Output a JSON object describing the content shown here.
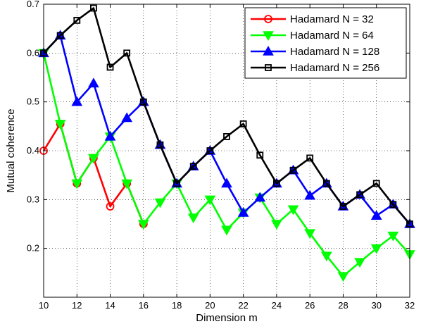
{
  "chart_data": {
    "type": "line",
    "title": "",
    "xlabel": "Dimension m",
    "ylabel": "Mutual coherence",
    "xlim": [
      10,
      32
    ],
    "ylim": [
      0.1,
      0.7
    ],
    "xticks": [
      10,
      12,
      14,
      16,
      18,
      20,
      22,
      24,
      26,
      28,
      30,
      32
    ],
    "yticks": [
      0.1,
      0.2,
      0.3,
      0.4,
      0.5,
      0.6,
      0.7
    ],
    "ytick_labels": [
      "",
      "0.2",
      "0.3",
      "0.4",
      "0.5",
      "0.6",
      "0.7"
    ],
    "grid": true,
    "legend_position": "top-right",
    "series": [
      {
        "name": "Hadamard N = 32",
        "color": "#ff0000",
        "marker": "circle",
        "x": [
          10,
          11,
          12,
          13,
          14,
          15,
          16
        ],
        "y": [
          0.4,
          0.455,
          0.333,
          0.385,
          0.286,
          0.333,
          0.25
        ]
      },
      {
        "name": "Hadamard N = 64",
        "color": "#00ff00",
        "marker": "triangle-down",
        "x": [
          10,
          11,
          12,
          13,
          14,
          15,
          16,
          17,
          18,
          19,
          20,
          21,
          22,
          23,
          24,
          25,
          26,
          27,
          28,
          29,
          30,
          31,
          32
        ],
        "y": [
          0.6,
          0.455,
          0.333,
          0.385,
          0.429,
          0.333,
          0.25,
          0.294,
          0.333,
          0.263,
          0.3,
          0.238,
          0.273,
          0.304,
          0.25,
          0.28,
          0.231,
          0.185,
          0.143,
          0.172,
          0.2,
          0.226,
          0.188
        ]
      },
      {
        "name": "Hadamard N = 128",
        "color": "#0000ff",
        "marker": "triangle-up",
        "x": [
          10,
          11,
          12,
          13,
          14,
          15,
          16,
          17,
          18,
          19,
          20,
          21,
          22,
          23,
          24,
          25,
          26,
          27,
          28,
          29,
          30,
          31,
          32
        ],
        "y": [
          0.6,
          0.636,
          0.5,
          0.538,
          0.429,
          0.467,
          0.5,
          0.412,
          0.333,
          0.368,
          0.4,
          0.333,
          0.273,
          0.304,
          0.333,
          0.36,
          0.308,
          0.333,
          0.286,
          0.31,
          0.267,
          0.29,
          0.25
        ]
      },
      {
        "name": "Hadamard N = 256",
        "color": "#000000",
        "marker": "square",
        "x": [
          10,
          11,
          12,
          13,
          14,
          15,
          16,
          17,
          18,
          19,
          20,
          21,
          22,
          23,
          24,
          25,
          26,
          27,
          28,
          29,
          30,
          31,
          32
        ],
        "y": [
          0.6,
          0.636,
          0.667,
          0.692,
          0.571,
          0.6,
          0.5,
          0.412,
          0.333,
          0.368,
          0.4,
          0.429,
          0.455,
          0.391,
          0.333,
          0.36,
          0.385,
          0.333,
          0.286,
          0.31,
          0.333,
          0.29,
          0.25
        ]
      }
    ]
  }
}
